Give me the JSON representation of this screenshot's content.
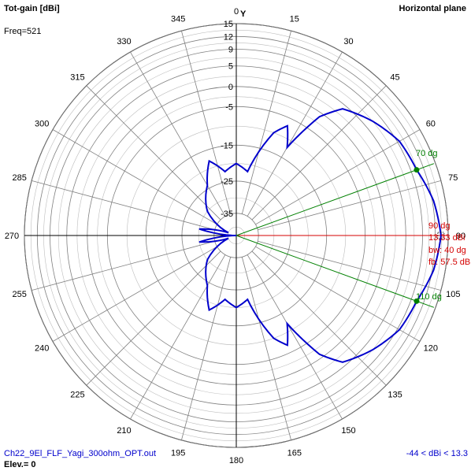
{
  "header": {
    "left_title": "Tot-gain [dBi]",
    "axis_y": "Y",
    "right_title": "Horizontal plane",
    "freq": "Freq=521"
  },
  "footer": {
    "filename": "Ch22_9El_FLF_Yagi_300ohm_OPT.out",
    "elev": "Elev.= 0",
    "range": "-44 < dBi < 13.3"
  },
  "annotations": {
    "beam_angle": "90 dg",
    "peak_gain": "13.33 dBi",
    "beamwidth": "bw: 40 dg",
    "front_back": "fb: 57.5 dB",
    "left_3db": "70 dg",
    "right_3db": "110 dg"
  },
  "colors": {
    "pattern": "#0000cc",
    "main_beam": "#d40000",
    "beamwidth_lines": "#008000",
    "grid": "#808080"
  },
  "chart_data": {
    "type": "polar",
    "title": "Tot-gain [dBi]",
    "subtitle": "Horizontal plane",
    "angle_labels": [
      "0",
      "15",
      "30",
      "45",
      "60",
      "75",
      "90",
      "105",
      "120",
      "135",
      "150",
      "165",
      "180",
      "195",
      "210",
      "225",
      "240",
      "255",
      "270",
      "285",
      "300",
      "315",
      "330",
      "345"
    ],
    "radial_labels": [
      "15",
      "12",
      "9",
      "5",
      "0",
      "-5",
      "-15",
      "-25",
      "-35"
    ],
    "radial_ticks_dbi": [
      15,
      12,
      9,
      5,
      0,
      -5,
      -15,
      -25,
      -35
    ],
    "radial_scale": {
      "min": -44,
      "max": 15
    },
    "series": [
      {
        "points": [
          {
            "angle": 0,
            "dbi": -20
          },
          {
            "angle": 10,
            "dbi": -22
          },
          {
            "angle": 20,
            "dbi": -10
          },
          {
            "angle": 25,
            "dbi": -7
          },
          {
            "angle": 30,
            "dbi": -12
          },
          {
            "angle": 35,
            "dbi": -1
          },
          {
            "angle": 40,
            "dbi": 4
          },
          {
            "angle": 50,
            "dbi": 7
          },
          {
            "angle": 60,
            "dbi": 9.5
          },
          {
            "angle": 70,
            "dbi": 10.33
          },
          {
            "angle": 80,
            "dbi": 12.3
          },
          {
            "angle": 90,
            "dbi": 13.33
          },
          {
            "angle": 100,
            "dbi": 12.3
          },
          {
            "angle": 110,
            "dbi": 10.33
          },
          {
            "angle": 120,
            "dbi": 9.5
          },
          {
            "angle": 130,
            "dbi": 7
          },
          {
            "angle": 140,
            "dbi": 4
          },
          {
            "angle": 145,
            "dbi": -1
          },
          {
            "angle": 150,
            "dbi": -12
          },
          {
            "angle": 155,
            "dbi": -7
          },
          {
            "angle": 160,
            "dbi": -10
          },
          {
            "angle": 170,
            "dbi": -22
          },
          {
            "angle": 180,
            "dbi": -20
          },
          {
            "angle": 190,
            "dbi": -22
          },
          {
            "angle": 200,
            "dbi": -18
          },
          {
            "angle": 210,
            "dbi": -24
          },
          {
            "angle": 230,
            "dbi": -30
          },
          {
            "angle": 250,
            "dbi": -40
          },
          {
            "angle": 260,
            "dbi": -30
          },
          {
            "angle": 270,
            "dbi": -44
          },
          {
            "angle": 280,
            "dbi": -30
          },
          {
            "angle": 290,
            "dbi": -40
          },
          {
            "angle": 310,
            "dbi": -30
          },
          {
            "angle": 330,
            "dbi": -24
          },
          {
            "angle": 340,
            "dbi": -18
          },
          {
            "angle": 350,
            "dbi": -22
          },
          {
            "angle": 360,
            "dbi": -20
          }
        ]
      }
    ],
    "main_beam_angle": 90,
    "peak_gain_dbi": 13.33,
    "beamwidth_deg": 40,
    "half_power_angles": [
      70,
      110
    ],
    "front_to_back_db": 57.5
  }
}
